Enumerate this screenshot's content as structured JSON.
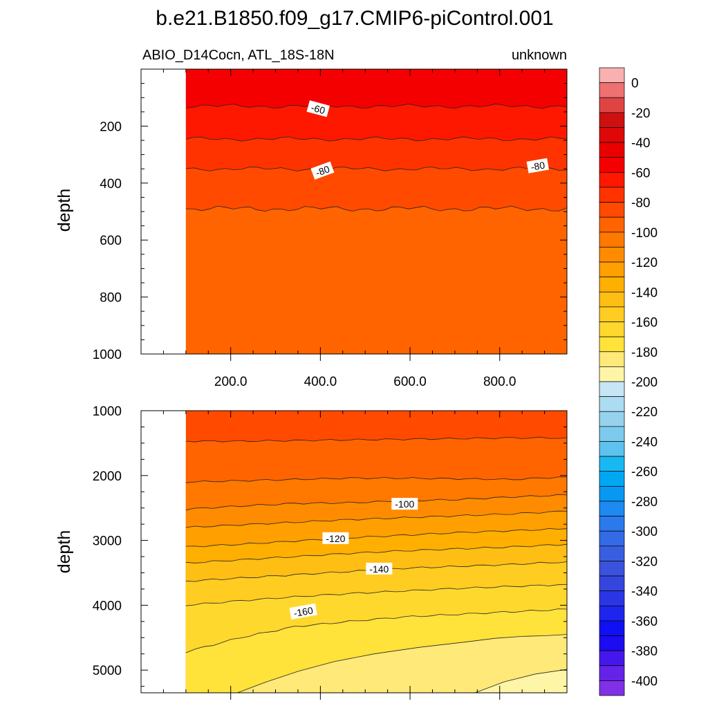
{
  "title": "b.e21.B1850.f09_g17.CMIP6-piControl.001",
  "subtitle_left": "ABIO_D14Cocn, ATL_18S-18N",
  "subtitle_right": "unknown",
  "chart_data": [
    {
      "type": "filled-contour",
      "panel": "upper",
      "variable": "ABIO_D14Cocn",
      "region": "ATL_18S-18N",
      "units": "unknown",
      "xlabel": "",
      "ylabel": "depth",
      "xlim": [
        0,
        950
      ],
      "ylim": [
        1000,
        0
      ],
      "y_reversed": true,
      "data_start_x": 100,
      "x_ticks": [
        200,
        400,
        600,
        800
      ],
      "x_tick_labels": [
        "200.0",
        "400.0",
        "600.0",
        "800.0"
      ],
      "y_ticks": [
        200,
        400,
        600,
        800,
        1000
      ],
      "y_tick_labels": [
        "200",
        "400",
        "600",
        "800",
        "1000"
      ],
      "fill_bands": [
        {
          "from_depth": 0,
          "to_depth": 130,
          "value_range": [
            -60,
            -50
          ]
        },
        {
          "from_depth": 130,
          "to_depth": 245,
          "value_range": [
            -70,
            -60
          ]
        },
        {
          "from_depth": 245,
          "to_depth": 350,
          "value_range": [
            -80,
            -70
          ]
        },
        {
          "from_depth": 350,
          "to_depth": 490,
          "value_range": [
            -90,
            -80
          ]
        },
        {
          "from_depth": 490,
          "to_depth": 1000,
          "value_range": [
            -100,
            -90
          ]
        }
      ],
      "contour_lines": [
        {
          "depth": 130,
          "wobble": 3
        },
        {
          "depth": 245,
          "wobble": 3
        },
        {
          "depth": 350,
          "wobble": 3
        },
        {
          "depth": 490,
          "wobble": 4
        }
      ],
      "contour_labels": [
        {
          "text": "-60",
          "x": 395,
          "depth": 140,
          "angle": 15
        },
        {
          "text": "-80",
          "x": 405,
          "depth": 357,
          "angle": -20
        },
        {
          "text": "-80",
          "x": 885,
          "depth": 340,
          "angle": -10
        }
      ]
    },
    {
      "type": "filled-contour",
      "panel": "lower",
      "variable": "ABIO_D14Cocn",
      "region": "ATL_18S-18N",
      "units": "unknown",
      "xlabel": "",
      "ylabel": "depth",
      "xlim": [
        0,
        950
      ],
      "ylim": [
        5350,
        1000
      ],
      "y_reversed": true,
      "data_start_x": 100,
      "y_ticks": [
        1000,
        2000,
        3000,
        4000,
        5000
      ],
      "y_tick_labels": [
        "1000",
        "2000",
        "3000",
        "4000",
        "5000"
      ],
      "background_value_range": [
        -90,
        -80
      ],
      "contour_levels": [
        {
          "depths": [
            1470,
            1470,
            1460,
            1450,
            1440,
            1430,
            1420,
            1420
          ],
          "upper_value_range": [
            -90,
            -80
          ],
          "lower_value_range": [
            -100,
            -90
          ]
        },
        {
          "depths": [
            2100,
            2080,
            2060,
            2040,
            2040,
            2050,
            2060,
            2020
          ],
          "upper_value_range": [
            -100,
            -90
          ],
          "lower_value_range": [
            -110,
            -100
          ]
        },
        {
          "depths": [
            2520,
            2470,
            2430,
            2420,
            2390,
            2370,
            2330,
            2300
          ],
          "upper_value_range": [
            -110,
            -100
          ],
          "lower_value_range": [
            -120,
            -110
          ]
        },
        {
          "depths": [
            2800,
            2760,
            2720,
            2680,
            2650,
            2620,
            2590,
            2550
          ],
          "upper_value_range": [
            -120,
            -110
          ],
          "lower_value_range": [
            -130,
            -120
          ]
        },
        {
          "depths": [
            3100,
            3060,
            3010,
            2960,
            2920,
            2880,
            2850,
            2820
          ],
          "upper_value_range": [
            -130,
            -120
          ],
          "lower_value_range": [
            -140,
            -130
          ]
        },
        {
          "depths": [
            3350,
            3300,
            3250,
            3200,
            3160,
            3130,
            3100,
            3060
          ],
          "upper_value_range": [
            -140,
            -130
          ],
          "lower_value_range": [
            -150,
            -140
          ]
        },
        {
          "depths": [
            3630,
            3580,
            3530,
            3480,
            3430,
            3400,
            3370,
            3330
          ],
          "upper_value_range": [
            -150,
            -140
          ],
          "lower_value_range": [
            -160,
            -150
          ]
        },
        {
          "depths": [
            4000,
            3930,
            3870,
            3820,
            3780,
            3740,
            3710,
            3680
          ],
          "upper_value_range": [
            -160,
            -150
          ],
          "lower_value_range": [
            -170,
            -160
          ]
        },
        {
          "depths": [
            4720,
            4500,
            4330,
            4250,
            4180,
            4140,
            4100,
            4060
          ],
          "upper_value_range": [
            -170,
            -160
          ],
          "lower_value_range": [
            -180,
            -170
          ]
        },
        {
          "points": [
            [
              215,
              5350
            ],
            [
              280,
              5180
            ],
            [
              350,
              5020
            ],
            [
              430,
              4870
            ],
            [
              520,
              4750
            ],
            [
              620,
              4650
            ],
            [
              720,
              4570
            ],
            [
              790,
              4510
            ],
            [
              850,
              4480
            ],
            [
              900,
              4470
            ],
            [
              950,
              4450
            ]
          ],
          "upper_value_range": [
            -180,
            -170
          ],
          "lower_value_range": [
            -190,
            -180
          ]
        },
        {
          "points": [
            [
              745,
              5350
            ],
            [
              810,
              5180
            ],
            [
              880,
              5060
            ],
            [
              950,
              4990
            ]
          ],
          "upper_value_range": [
            -190,
            -180
          ],
          "lower_value_range": [
            -200,
            -190
          ]
        }
      ],
      "contour_labels": [
        {
          "text": "-100",
          "x": 588,
          "depth": 2440,
          "angle": 0
        },
        {
          "text": "-120",
          "x": 434,
          "depth": 2970,
          "angle": 0
        },
        {
          "text": "-140",
          "x": 531,
          "depth": 3440,
          "angle": 0
        },
        {
          "text": "-160",
          "x": 362,
          "depth": 4100,
          "angle": -10
        }
      ]
    }
  ],
  "colorbar": {
    "tick_labels": [
      "0",
      "-20",
      "-40",
      "-60",
      "-80",
      "-100",
      "-120",
      "-140",
      "-160",
      "-180",
      "-200",
      "-220",
      "-240",
      "-260",
      "-280",
      "-300",
      "-320",
      "-340",
      "-360",
      "-380",
      "-400"
    ],
    "tick_values": [
      0,
      -20,
      -40,
      -60,
      -80,
      -100,
      -120,
      -140,
      -160,
      -180,
      -200,
      -220,
      -240,
      -260,
      -280,
      -300,
      -320,
      -340,
      -360,
      -380,
      -400
    ],
    "bins": [
      {
        "range": [
          0,
          10
        ],
        "color": "#f9b0b0"
      },
      {
        "range": [
          -10,
          0
        ],
        "color": "#ee7070"
      },
      {
        "range": [
          -20,
          -10
        ],
        "color": "#df4444"
      },
      {
        "range": [
          -30,
          -20
        ],
        "color": "#cf1010"
      },
      {
        "range": [
          -40,
          -30
        ],
        "color": "#de0808"
      },
      {
        "range": [
          -50,
          -40
        ],
        "color": "#ea0000"
      },
      {
        "range": [
          -60,
          -50
        ],
        "color": "#f40000"
      },
      {
        "range": [
          -70,
          -60
        ],
        "color": "#ff1800"
      },
      {
        "range": [
          -80,
          -70
        ],
        "color": "#ff3300"
      },
      {
        "range": [
          -90,
          -80
        ],
        "color": "#ff4a00"
      },
      {
        "range": [
          -100,
          -90
        ],
        "color": "#ff6400"
      },
      {
        "range": [
          -110,
          -100
        ],
        "color": "#ff7800"
      },
      {
        "range": [
          -120,
          -110
        ],
        "color": "#ff8c00"
      },
      {
        "range": [
          -130,
          -120
        ],
        "color": "#ff9f00"
      },
      {
        "range": [
          -140,
          -130
        ],
        "color": "#ffaf00"
      },
      {
        "range": [
          -150,
          -140
        ],
        "color": "#ffbe14"
      },
      {
        "range": [
          -160,
          -150
        ],
        "color": "#ffcc22"
      },
      {
        "range": [
          -170,
          -160
        ],
        "color": "#ffd82e"
      },
      {
        "range": [
          -180,
          -170
        ],
        "color": "#ffe23a"
      },
      {
        "range": [
          -190,
          -180
        ],
        "color": "#ffe978"
      },
      {
        "range": [
          -200,
          -190
        ],
        "color": "#fff5a6"
      },
      {
        "range": [
          -210,
          -200
        ],
        "color": "#c6e6f6"
      },
      {
        "range": [
          -220,
          -210
        ],
        "color": "#acdcf2"
      },
      {
        "range": [
          -230,
          -220
        ],
        "color": "#96d2ee"
      },
      {
        "range": [
          -240,
          -230
        ],
        "color": "#7ccaee"
      },
      {
        "range": [
          -250,
          -240
        ],
        "color": "#5ec2ee"
      },
      {
        "range": [
          -260,
          -250
        ],
        "color": "#18b8f2"
      },
      {
        "range": [
          -270,
          -260
        ],
        "color": "#00a8f4"
      },
      {
        "range": [
          -280,
          -270
        ],
        "color": "#0898f2"
      },
      {
        "range": [
          -290,
          -280
        ],
        "color": "#1c8af0"
      },
      {
        "range": [
          -300,
          -290
        ],
        "color": "#2a7aee"
      },
      {
        "range": [
          -310,
          -300
        ],
        "color": "#336ae6"
      },
      {
        "range": [
          -320,
          -310
        ],
        "color": "#3a5ee0"
      },
      {
        "range": [
          -330,
          -320
        ],
        "color": "#3a52dc"
      },
      {
        "range": [
          -340,
          -330
        ],
        "color": "#3446de"
      },
      {
        "range": [
          -350,
          -340
        ],
        "color": "#2a36e6"
      },
      {
        "range": [
          -360,
          -350
        ],
        "color": "#1e26ee"
      },
      {
        "range": [
          -370,
          -360
        ],
        "color": "#1010f4"
      },
      {
        "range": [
          -380,
          -370
        ],
        "color": "#1c0cf2"
      },
      {
        "range": [
          -390,
          -380
        ],
        "color": "#4418ec"
      },
      {
        "range": [
          -400,
          -390
        ],
        "color": "#6424e8"
      },
      {
        "range": [
          -410,
          -400
        ],
        "color": "#8030e6"
      }
    ]
  }
}
